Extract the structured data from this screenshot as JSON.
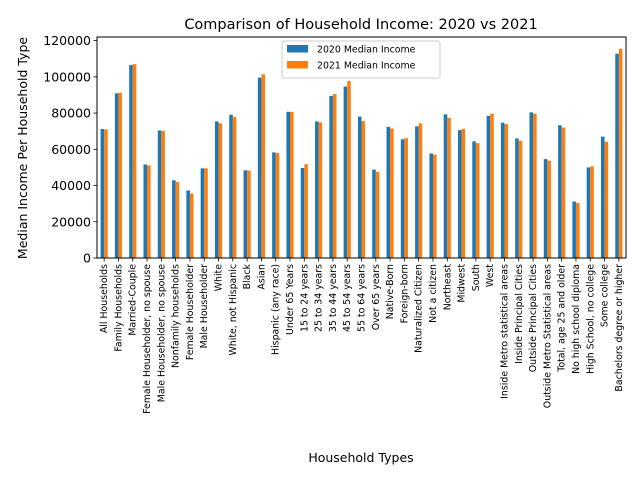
{
  "chart_data": {
    "type": "bar",
    "title": "Comparison of Household Income: 2020 vs 2021",
    "xlabel": "Household Types",
    "ylabel": "Median Income Per Household Type",
    "ylim": [
      0,
      122000
    ],
    "yticks": [
      0,
      20000,
      40000,
      60000,
      80000,
      100000,
      120000
    ],
    "grid": false,
    "legend_position": "top-center",
    "categories": [
      "All Households",
      "Family Households",
      "Married-Couple",
      "Female Householder, no spouse",
      "Male Householder, no spouse",
      "Nonfamily households",
      "Female Householder",
      "Male Householder",
      "White",
      "White, not Hispanic",
      "Black",
      "Asian",
      "Hispanic (any race)",
      "Under 65 Years",
      "15 to 24 years",
      "25 to 34 years",
      "35 to 44 years",
      "45 to 54 years",
      "55 to 64 years",
      "Over 65 years",
      "Native-Born",
      "Foreign-born",
      "Naturalized Citizen",
      "Not a citizen",
      "Northeast",
      "Midwest",
      "South",
      "West",
      "Inside Metro statistical areas",
      "Inside Principal Cities",
      "Outside Principal Cities",
      "Outside Metro Statistical areas",
      "Total, age 25 and older",
      "No high school diploma",
      "High School, no college",
      "Some college",
      "Bachelors degree or higher"
    ],
    "series": [
      {
        "name": "2020 Median Income",
        "color": "#1f77b4",
        "values": [
          71200,
          90900,
          106500,
          51600,
          70400,
          42900,
          37300,
          49500,
          75400,
          79100,
          48400,
          99600,
          58300,
          80700,
          49700,
          75400,
          89500,
          94700,
          78100,
          48800,
          72400,
          65500,
          72700,
          57700,
          79300,
          70600,
          64400,
          78500,
          74700,
          66000,
          80400,
          54600,
          73300,
          31200,
          50000,
          67000,
          112800
        ]
      },
      {
        "name": "2021 Median Income",
        "color": "#ff7f0e",
        "values": [
          71000,
          91200,
          107000,
          51100,
          70200,
          42000,
          35600,
          49500,
          74400,
          77900,
          48300,
          101400,
          58000,
          80700,
          51800,
          74900,
          90500,
          97700,
          75600,
          47600,
          71500,
          66200,
          74300,
          57100,
          77400,
          71300,
          63400,
          79700,
          73900,
          64700,
          79700,
          53700,
          72000,
          30400,
          50600,
          64200,
          115500
        ]
      }
    ]
  }
}
